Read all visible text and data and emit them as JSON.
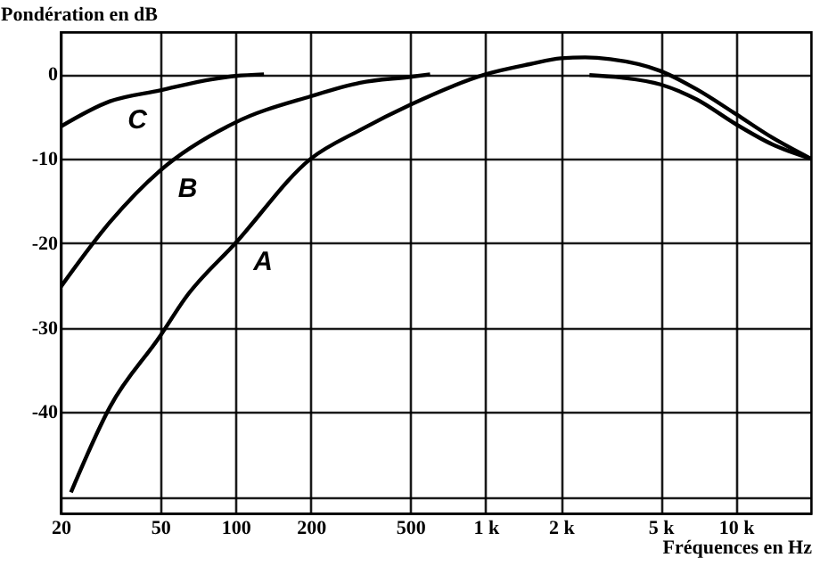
{
  "chart_data": {
    "type": "line",
    "xlabel": "Fréquences en Hz",
    "ylabel": "Pondération en dB",
    "log": "x",
    "grid": true,
    "marker": "none",
    "line_style": "solid",
    "xlim": [
      20,
      20000
    ],
    "ylim": [
      -52,
      5
    ],
    "xticks": [
      20,
      50,
      100,
      200,
      500,
      {
        "value": 1000,
        "label": "1 k"
      },
      {
        "value": 2000,
        "label": "2 k"
      },
      {
        "value": 5000,
        "label": "5 k"
      },
      {
        "value": 10000,
        "label": "10 k"
      }
    ],
    "yticks": [
      0,
      -10,
      -20,
      -30,
      -40,
      {
        "value": -50,
        "label": null
      }
    ],
    "series": [
      {
        "name": "C",
        "color": "#000000",
        "x": [
          20,
          31.5,
          50,
          80,
          100,
          130
        ],
        "values": [
          -6.2,
          -3.2,
          -1.9,
          -0.6,
          -0.2,
          0
        ]
      },
      {
        "name": "B",
        "color": "#000000",
        "x": [
          20,
          31.5,
          50,
          100,
          200,
          315,
          500,
          600
        ],
        "values": [
          -25.2,
          -17.5,
          -11.4,
          -5.7,
          -2.6,
          -1,
          -0.3,
          0
        ]
      },
      {
        "name": "A",
        "color": "#000000",
        "x": [
          22,
          31.5,
          50,
          63,
          100,
          200,
          315,
          500,
          1000,
          1500,
          2000,
          2500,
          3150,
          5000,
          7000,
          10000,
          14000,
          20000
        ],
        "values": [
          -49.5,
          -39.4,
          -31,
          -26.5,
          -20,
          -10,
          -6.6,
          -3.6,
          0,
          1.2,
          1.9,
          2,
          1.8,
          0.4,
          -1.8,
          -4.7,
          -7.5,
          -10
        ]
      },
      {
        "color": "#000000",
        "x": [
          2600,
          3500,
          5000,
          7000,
          10000,
          14000,
          20000
        ],
        "values": [
          -0.1,
          -0.4,
          -1.2,
          -3,
          -5.9,
          -8.3,
          -10
        ]
      }
    ]
  }
}
